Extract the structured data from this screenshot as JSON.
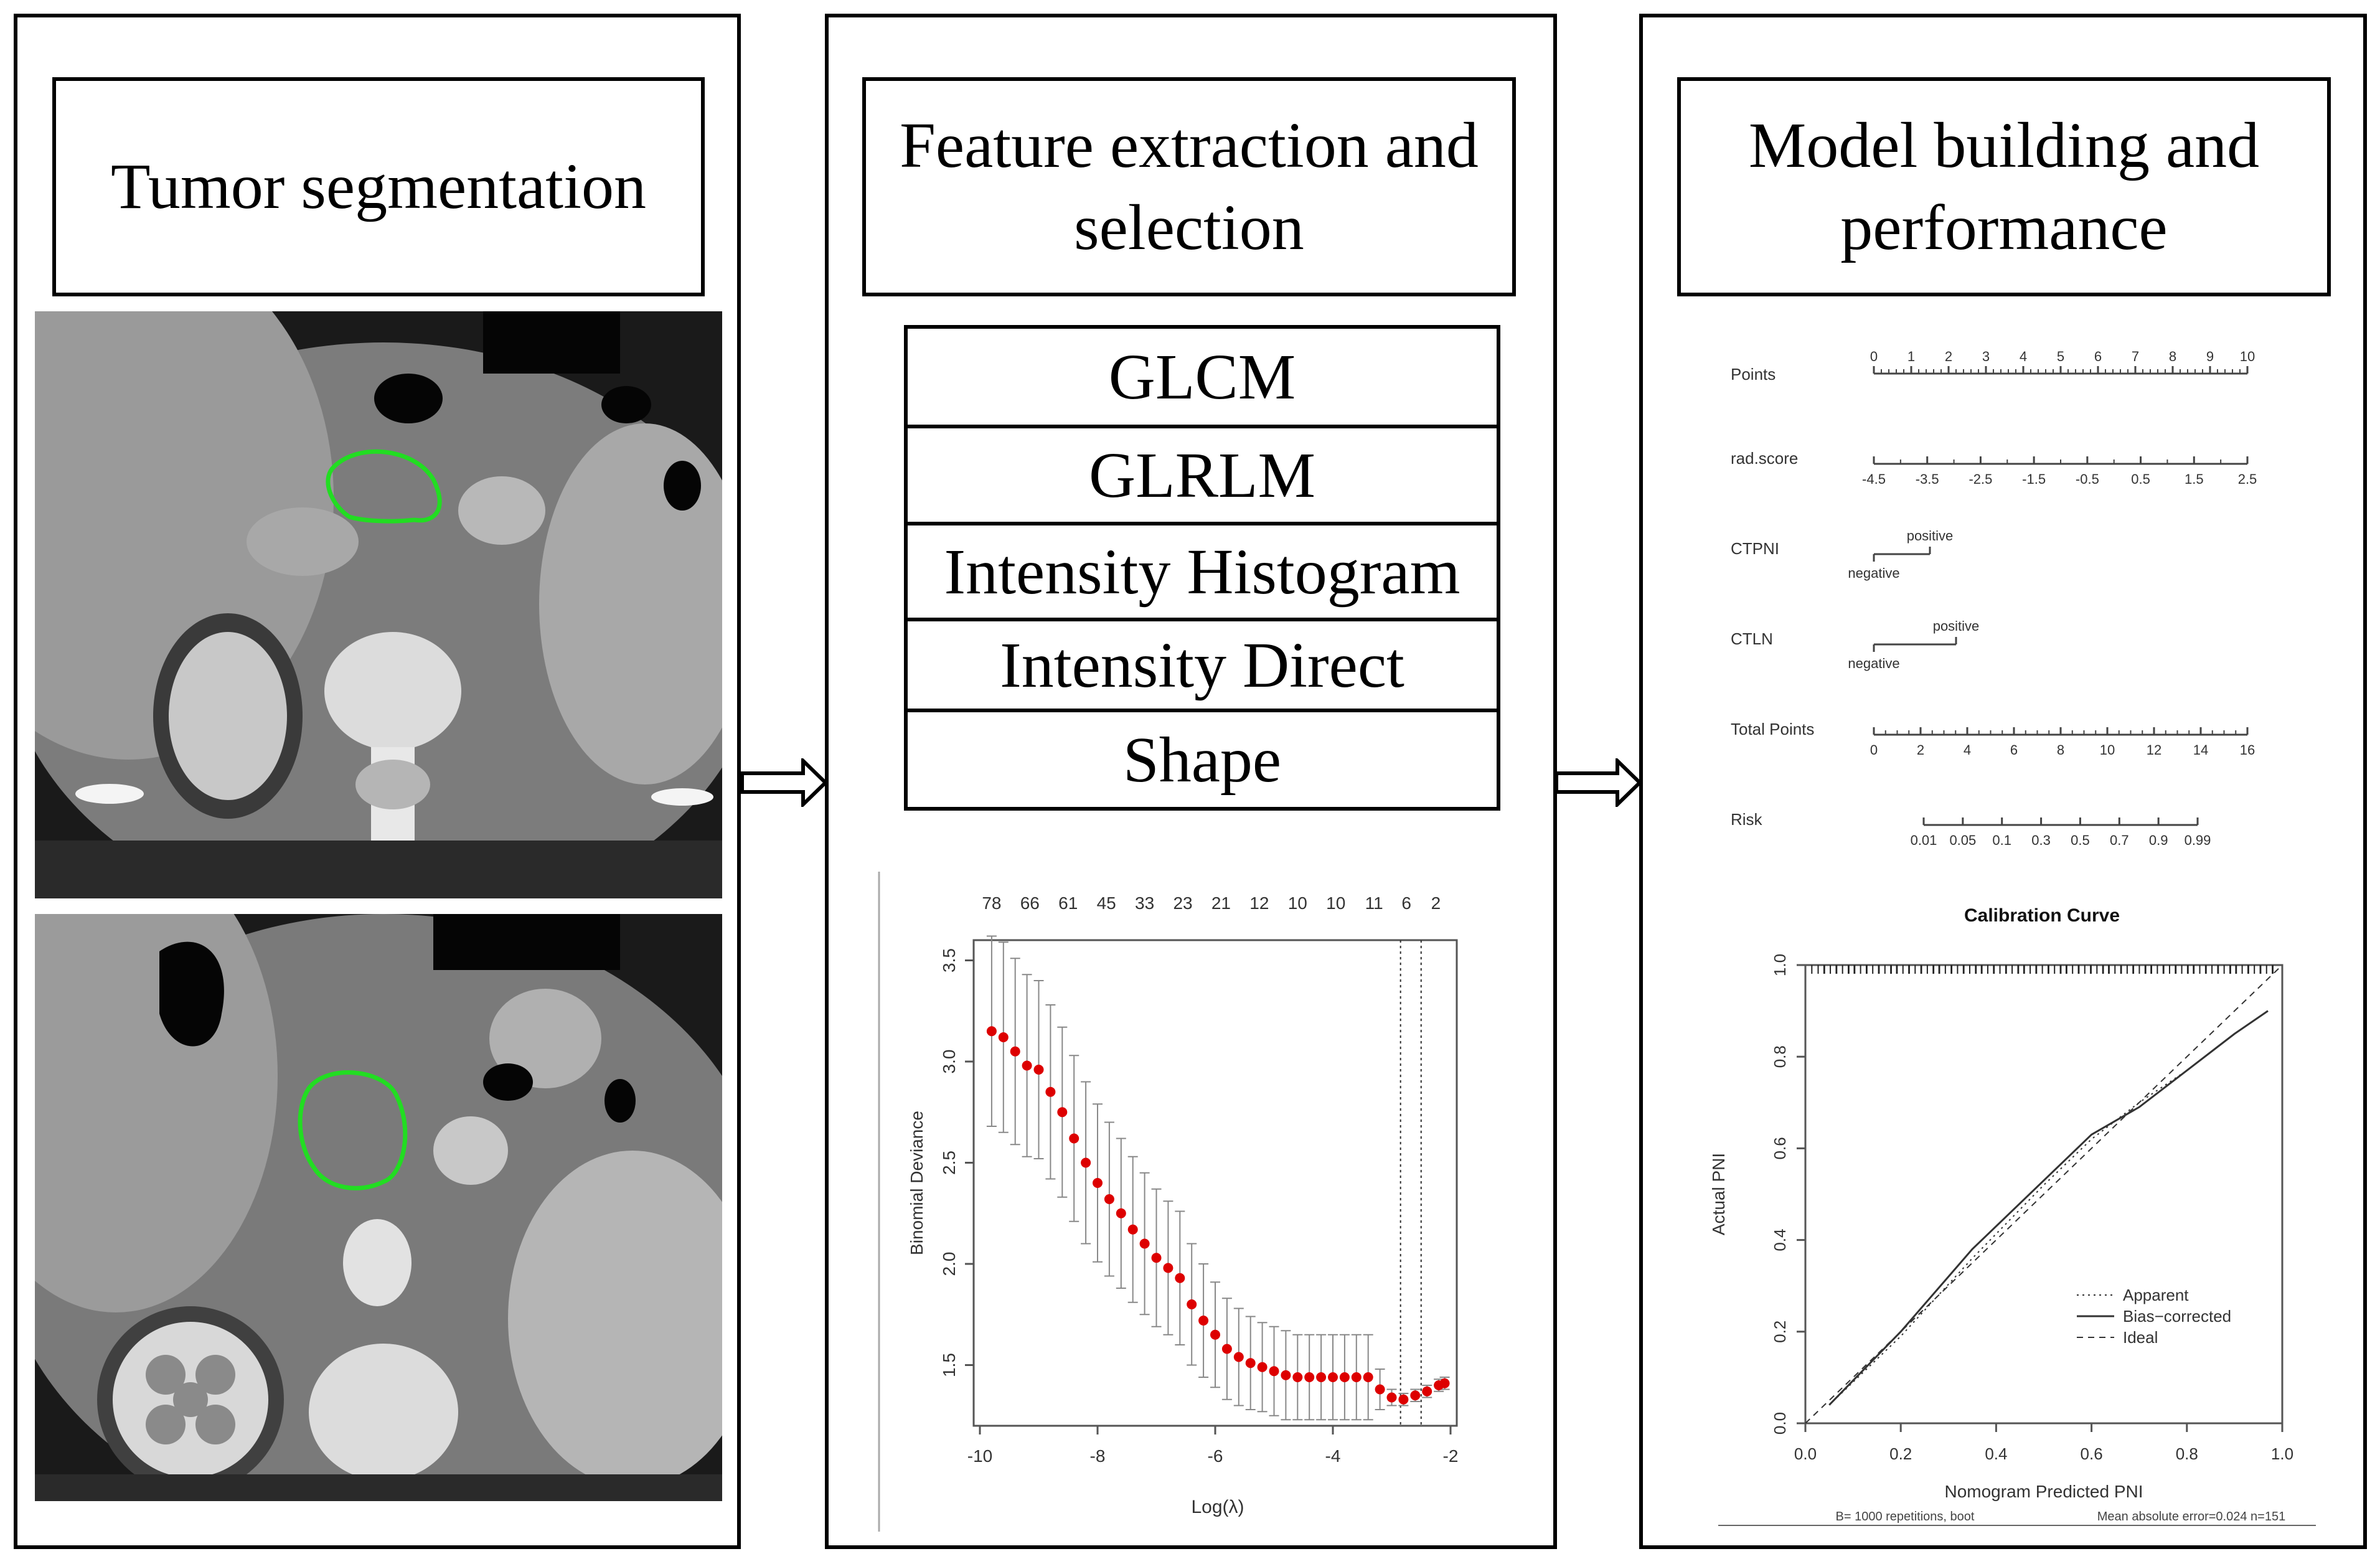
{
  "panels": {
    "segmentation": {
      "title": "Tumor segmentation"
    },
    "features": {
      "title_line1": "Feature extraction and",
      "title_line2": "selection",
      "feature_groups": [
        "GLCM",
        "GLRLM",
        "Intensity Histogram",
        "Intensity Direct",
        "Shape"
      ]
    },
    "model": {
      "title_line1": "Model building and",
      "title_line2": "performance"
    }
  },
  "colors": {
    "contour": "#22dd22",
    "cv_points": "#dd0000",
    "border": "#000000"
  },
  "nomogram": {
    "rows": [
      {
        "label": "Points",
        "ticks": [
          "0",
          "1",
          "2",
          "3",
          "4",
          "5",
          "6",
          "7",
          "8",
          "9",
          "10"
        ]
      },
      {
        "label": "rad.score",
        "ticks": [
          "-4.5",
          "-3.5",
          "-2.5",
          "-1.5",
          "-0.5",
          "0.5",
          "1.5",
          "2.5"
        ]
      },
      {
        "label": "CTPNI",
        "low": "negative",
        "high": "positive"
      },
      {
        "label": "CTLN",
        "low": "negative",
        "high": "positive"
      },
      {
        "label": "Total Points",
        "ticks": [
          "0",
          "2",
          "4",
          "6",
          "8",
          "10",
          "12",
          "14",
          "16"
        ]
      },
      {
        "label": "Risk",
        "ticks": [
          "0.01",
          "0.05",
          "0.1",
          "0.3",
          "0.5",
          "0.7",
          "0.9",
          "0.99"
        ]
      }
    ]
  },
  "chart_data": [
    {
      "type": "scatter",
      "title": "",
      "xlabel": "Log(λ)",
      "ylabel": "Binomial Deviance",
      "xlim": [
        -10,
        -2
      ],
      "ylim": [
        1.2,
        3.6
      ],
      "xticks": [
        "-10",
        "-8",
        "-6",
        "-4",
        "-2"
      ],
      "yticks": [
        "1.5",
        "2.0",
        "2.5",
        "3.0",
        "3.5"
      ],
      "top_labels": [
        "78",
        "66",
        "61",
        "45",
        "33",
        "23",
        "21",
        "12",
        "10",
        "10",
        "11",
        "6",
        "2"
      ],
      "top_label_x": [
        -9.8,
        -9.15,
        -8.5,
        -7.85,
        -7.2,
        -6.55,
        -5.9,
        -5.25,
        -4.6,
        -3.95,
        -3.3,
        -2.75,
        -2.25
      ],
      "vlines": [
        -2.85,
        -2.5
      ],
      "x": [
        -9.8,
        -9.6,
        -9.4,
        -9.2,
        -9.0,
        -8.8,
        -8.6,
        -8.4,
        -8.2,
        -8.0,
        -7.8,
        -7.6,
        -7.4,
        -7.2,
        -7.0,
        -6.8,
        -6.6,
        -6.4,
        -6.2,
        -6.0,
        -5.8,
        -5.6,
        -5.4,
        -5.2,
        -5.0,
        -4.8,
        -4.6,
        -4.4,
        -4.2,
        -4.0,
        -3.8,
        -3.6,
        -3.4,
        -3.2,
        -3.0,
        -2.8,
        -2.6,
        -2.4,
        -2.2,
        -2.1
      ],
      "y": [
        3.15,
        3.12,
        3.05,
        2.98,
        2.96,
        2.85,
        2.75,
        2.62,
        2.5,
        2.4,
        2.32,
        2.25,
        2.17,
        2.1,
        2.03,
        1.98,
        1.93,
        1.8,
        1.72,
        1.65,
        1.58,
        1.54,
        1.51,
        1.49,
        1.47,
        1.45,
        1.44,
        1.44,
        1.44,
        1.44,
        1.44,
        1.44,
        1.44,
        1.38,
        1.34,
        1.33,
        1.35,
        1.37,
        1.4,
        1.41
      ],
      "err": [
        0.47,
        0.47,
        0.46,
        0.45,
        0.44,
        0.43,
        0.42,
        0.41,
        0.4,
        0.39,
        0.38,
        0.37,
        0.36,
        0.35,
        0.34,
        0.33,
        0.33,
        0.3,
        0.28,
        0.26,
        0.25,
        0.24,
        0.23,
        0.22,
        0.22,
        0.22,
        0.21,
        0.21,
        0.21,
        0.21,
        0.21,
        0.21,
        0.21,
        0.1,
        0.04,
        0.03,
        0.03,
        0.03,
        0.03,
        0.03
      ]
    },
    {
      "type": "line",
      "title": "Calibration Curve",
      "xlabel": "Nomogram Predicted PNI",
      "ylabel": "Actual PNI",
      "xlim": [
        0,
        1
      ],
      "ylim": [
        0,
        1
      ],
      "xticks": [
        "0.0",
        "0.2",
        "0.4",
        "0.6",
        "0.8",
        "1.0"
      ],
      "yticks": [
        "0.0",
        "0.2",
        "0.4",
        "0.6",
        "0.8",
        "1.0"
      ],
      "footer_left": "B= 1000 repetitions, boot",
      "footer_right": "Mean absolute error=0.024 n=151",
      "series": [
        {
          "name": "Apparent",
          "x": [
            0.05,
            0.2,
            0.35,
            0.5,
            0.6,
            0.7,
            0.8,
            0.9,
            0.97
          ],
          "y": [
            0.04,
            0.19,
            0.36,
            0.52,
            0.62,
            0.7,
            0.77,
            0.85,
            0.9
          ]
        },
        {
          "name": "Bias−corrected",
          "x": [
            0.05,
            0.2,
            0.35,
            0.5,
            0.6,
            0.7,
            0.8,
            0.9,
            0.97
          ],
          "y": [
            0.04,
            0.2,
            0.38,
            0.53,
            0.63,
            0.69,
            0.77,
            0.85,
            0.9
          ]
        },
        {
          "name": "Ideal",
          "x": [
            0,
            1
          ],
          "y": [
            0,
            1
          ]
        }
      ]
    }
  ]
}
